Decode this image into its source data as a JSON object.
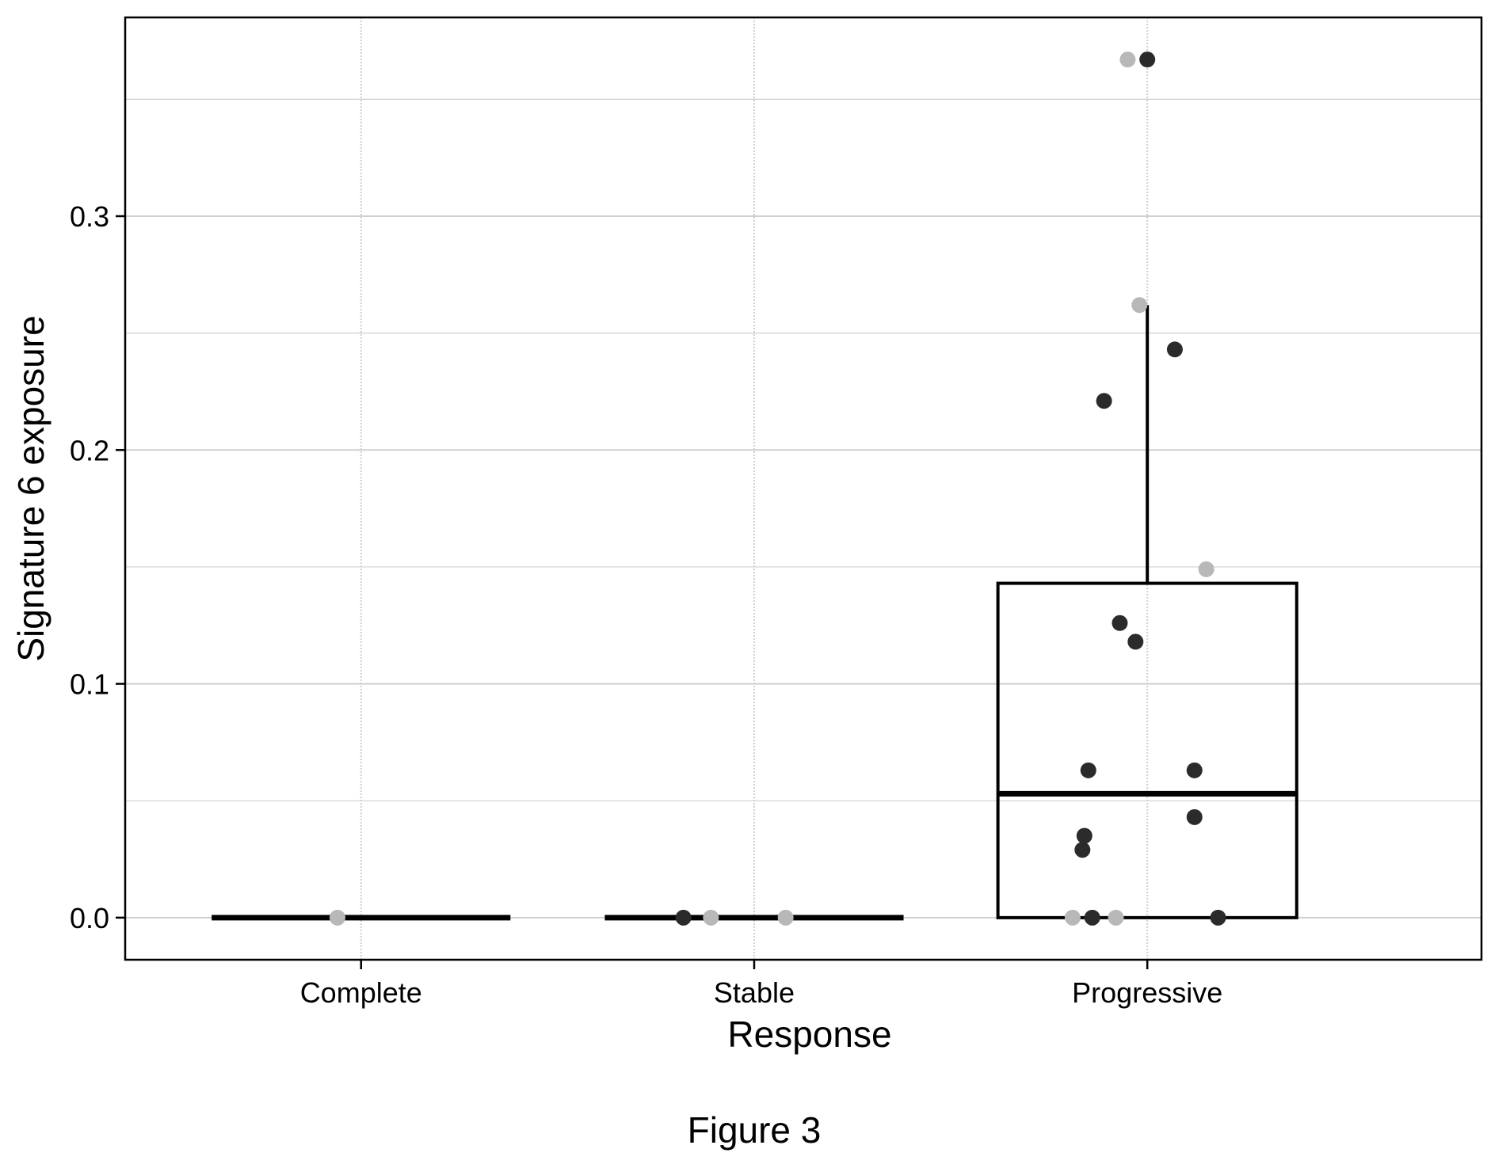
{
  "caption": "Figure 3",
  "chart_data": {
    "type": "box",
    "xlabel": "Response",
    "ylabel": "Signature 6 exposure",
    "categories": [
      "Complete",
      "Stable",
      "Progressive"
    ],
    "ylim": [
      -0.018,
      0.385
    ],
    "yticks": [
      0.0,
      0.1,
      0.2,
      0.3
    ],
    "ytick_labels": [
      "0.0",
      "0.1",
      "0.2",
      "0.3"
    ],
    "grid": true,
    "boxes": [
      {
        "category": "Complete",
        "min": 0.0,
        "q1": 0.0,
        "median": 0.0,
        "q3": 0.0,
        "max": 0.0
      },
      {
        "category": "Stable",
        "min": 0.0,
        "q1": 0.0,
        "median": 0.0,
        "q3": 0.0,
        "max": 0.0
      },
      {
        "category": "Progressive",
        "min": 0.0,
        "q1": 0.0,
        "median": 0.053,
        "q3": 0.143,
        "max": 0.262
      }
    ],
    "points": [
      {
        "category": "Complete",
        "x": -0.06,
        "y": 0.0,
        "shade": "light"
      },
      {
        "category": "Stable",
        "x": -0.18,
        "y": 0.0,
        "shade": "dark"
      },
      {
        "category": "Stable",
        "x": -0.11,
        "y": 0.0,
        "shade": "light"
      },
      {
        "category": "Stable",
        "x": 0.08,
        "y": 0.0,
        "shade": "light"
      },
      {
        "category": "Progressive",
        "x": -0.05,
        "y": 0.367,
        "shade": "light"
      },
      {
        "category": "Progressive",
        "x": 0.0,
        "y": 0.367,
        "shade": "dark"
      },
      {
        "category": "Progressive",
        "x": -0.02,
        "y": 0.262,
        "shade": "light"
      },
      {
        "category": "Progressive",
        "x": 0.07,
        "y": 0.243,
        "shade": "dark"
      },
      {
        "category": "Progressive",
        "x": -0.11,
        "y": 0.221,
        "shade": "dark"
      },
      {
        "category": "Progressive",
        "x": 0.15,
        "y": 0.149,
        "shade": "light"
      },
      {
        "category": "Progressive",
        "x": -0.07,
        "y": 0.126,
        "shade": "dark"
      },
      {
        "category": "Progressive",
        "x": -0.03,
        "y": 0.118,
        "shade": "dark"
      },
      {
        "category": "Progressive",
        "x": -0.15,
        "y": 0.063,
        "shade": "dark"
      },
      {
        "category": "Progressive",
        "x": 0.12,
        "y": 0.063,
        "shade": "dark"
      },
      {
        "category": "Progressive",
        "x": 0.12,
        "y": 0.043,
        "shade": "dark"
      },
      {
        "category": "Progressive",
        "x": -0.16,
        "y": 0.035,
        "shade": "dark"
      },
      {
        "category": "Progressive",
        "x": -0.165,
        "y": 0.029,
        "shade": "dark"
      },
      {
        "category": "Progressive",
        "x": -0.19,
        "y": 0.0,
        "shade": "light"
      },
      {
        "category": "Progressive",
        "x": -0.14,
        "y": 0.0,
        "shade": "dark"
      },
      {
        "category": "Progressive",
        "x": -0.08,
        "y": 0.0,
        "shade": "light"
      },
      {
        "category": "Progressive",
        "x": 0.18,
        "y": 0.0,
        "shade": "dark"
      }
    ],
    "colors": {
      "dark_point": "#2b2b2b",
      "light_point": "#b8b8b8",
      "box_line": "#000000",
      "grid": "#d0d0d0"
    }
  }
}
